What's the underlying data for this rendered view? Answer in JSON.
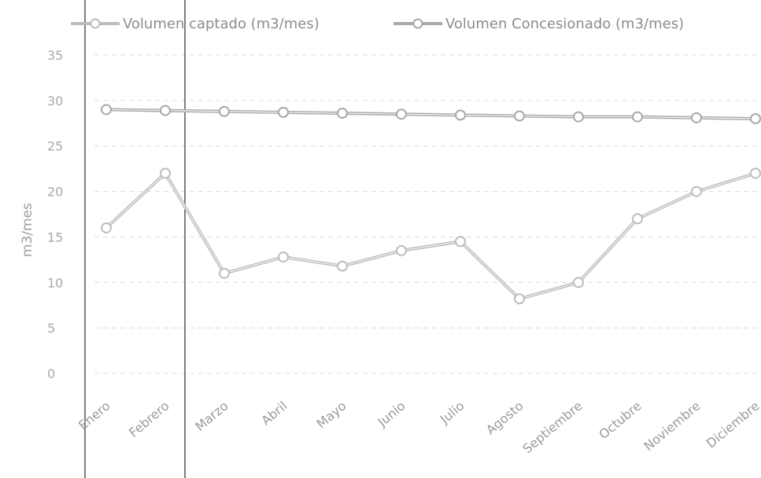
{
  "chart_data": {
    "type": "line",
    "title": "",
    "xlabel": "",
    "ylabel": "m3/mes",
    "categories": [
      "Enero",
      "Febrero",
      "Marzo",
      "Abril",
      "Mayo",
      "Junio",
      "Julio",
      "Agosto",
      "Septiembre",
      "Octubre",
      "Noviembre",
      "Diciembre"
    ],
    "ylim": [
      0,
      35
    ],
    "yticks": [
      0,
      5,
      10,
      15,
      20,
      25,
      30,
      35
    ],
    "grid": true,
    "legend_position": "top",
    "series": [
      {
        "name": "Volumen captado (m3/mes)",
        "values": [
          16,
          22,
          11,
          12.8,
          11.8,
          13.5,
          14.5,
          8.2,
          10,
          17,
          20,
          22
        ],
        "color": "#bdbdbd"
      },
      {
        "name": "Volumen Concesionado (m3/mes)",
        "values": [
          29,
          28.9,
          28.8,
          28.7,
          28.6,
          28.5,
          28.4,
          28.3,
          28.2,
          28.2,
          28.1,
          28
        ],
        "color": "#a9a9a9"
      }
    ]
  }
}
